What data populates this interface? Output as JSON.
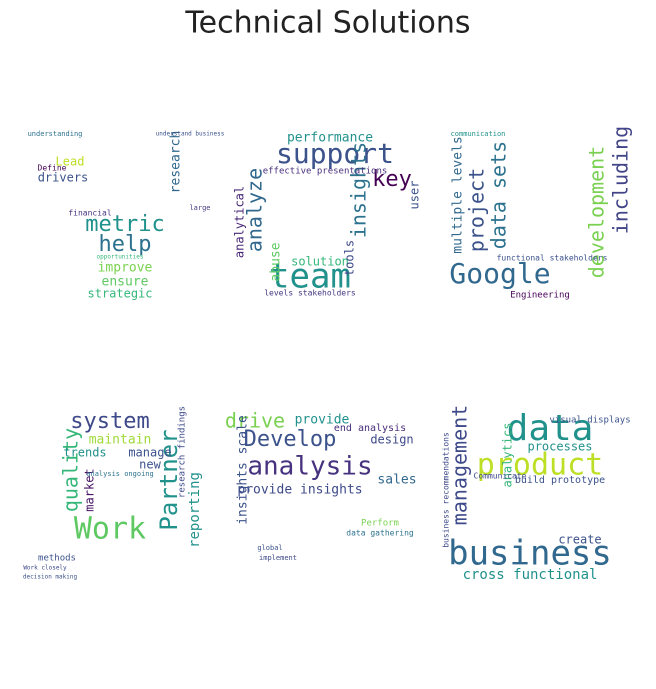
{
  "title": "Technical Solutions",
  "panels": [
    {
      "words": [
        "metric",
        "help",
        "Lead",
        "drivers",
        "improve",
        "ensure",
        "strategic",
        "research",
        "financial",
        "understanding",
        "understand business",
        "Define",
        "large",
        "opportunities"
      ]
    },
    {
      "words": [
        "support",
        "team",
        "analyze",
        "insights",
        "key",
        "performance",
        "solution",
        "abuse",
        "analytical",
        "tools",
        "user",
        "levels stakeholders",
        "effective presentations"
      ]
    },
    {
      "words": [
        "Google",
        "project",
        "data sets",
        "development",
        "including",
        "multiple levels",
        "Engineering",
        "functional stakeholders",
        "communication"
      ]
    },
    {
      "words": [
        "system",
        "Work",
        "Partner",
        "quality",
        "maintain",
        "manage",
        "trends",
        "new",
        "market",
        "reporting",
        "methods",
        "analysis ongoing",
        "research findings",
        "Work closely",
        "decision making"
      ]
    },
    {
      "words": [
        "Develop",
        "drive",
        "analysis",
        "provide insights",
        "provide",
        "design",
        "sales",
        "insights scale",
        "end analysis",
        "Perform",
        "data gathering",
        "global",
        "implement"
      ]
    },
    {
      "words": [
        "data",
        "product",
        "business",
        "management",
        "cross functional",
        "processes",
        "analytics",
        "create",
        "build prototype",
        "Communicate",
        "visual displays",
        "business recommendations"
      ]
    }
  ]
}
